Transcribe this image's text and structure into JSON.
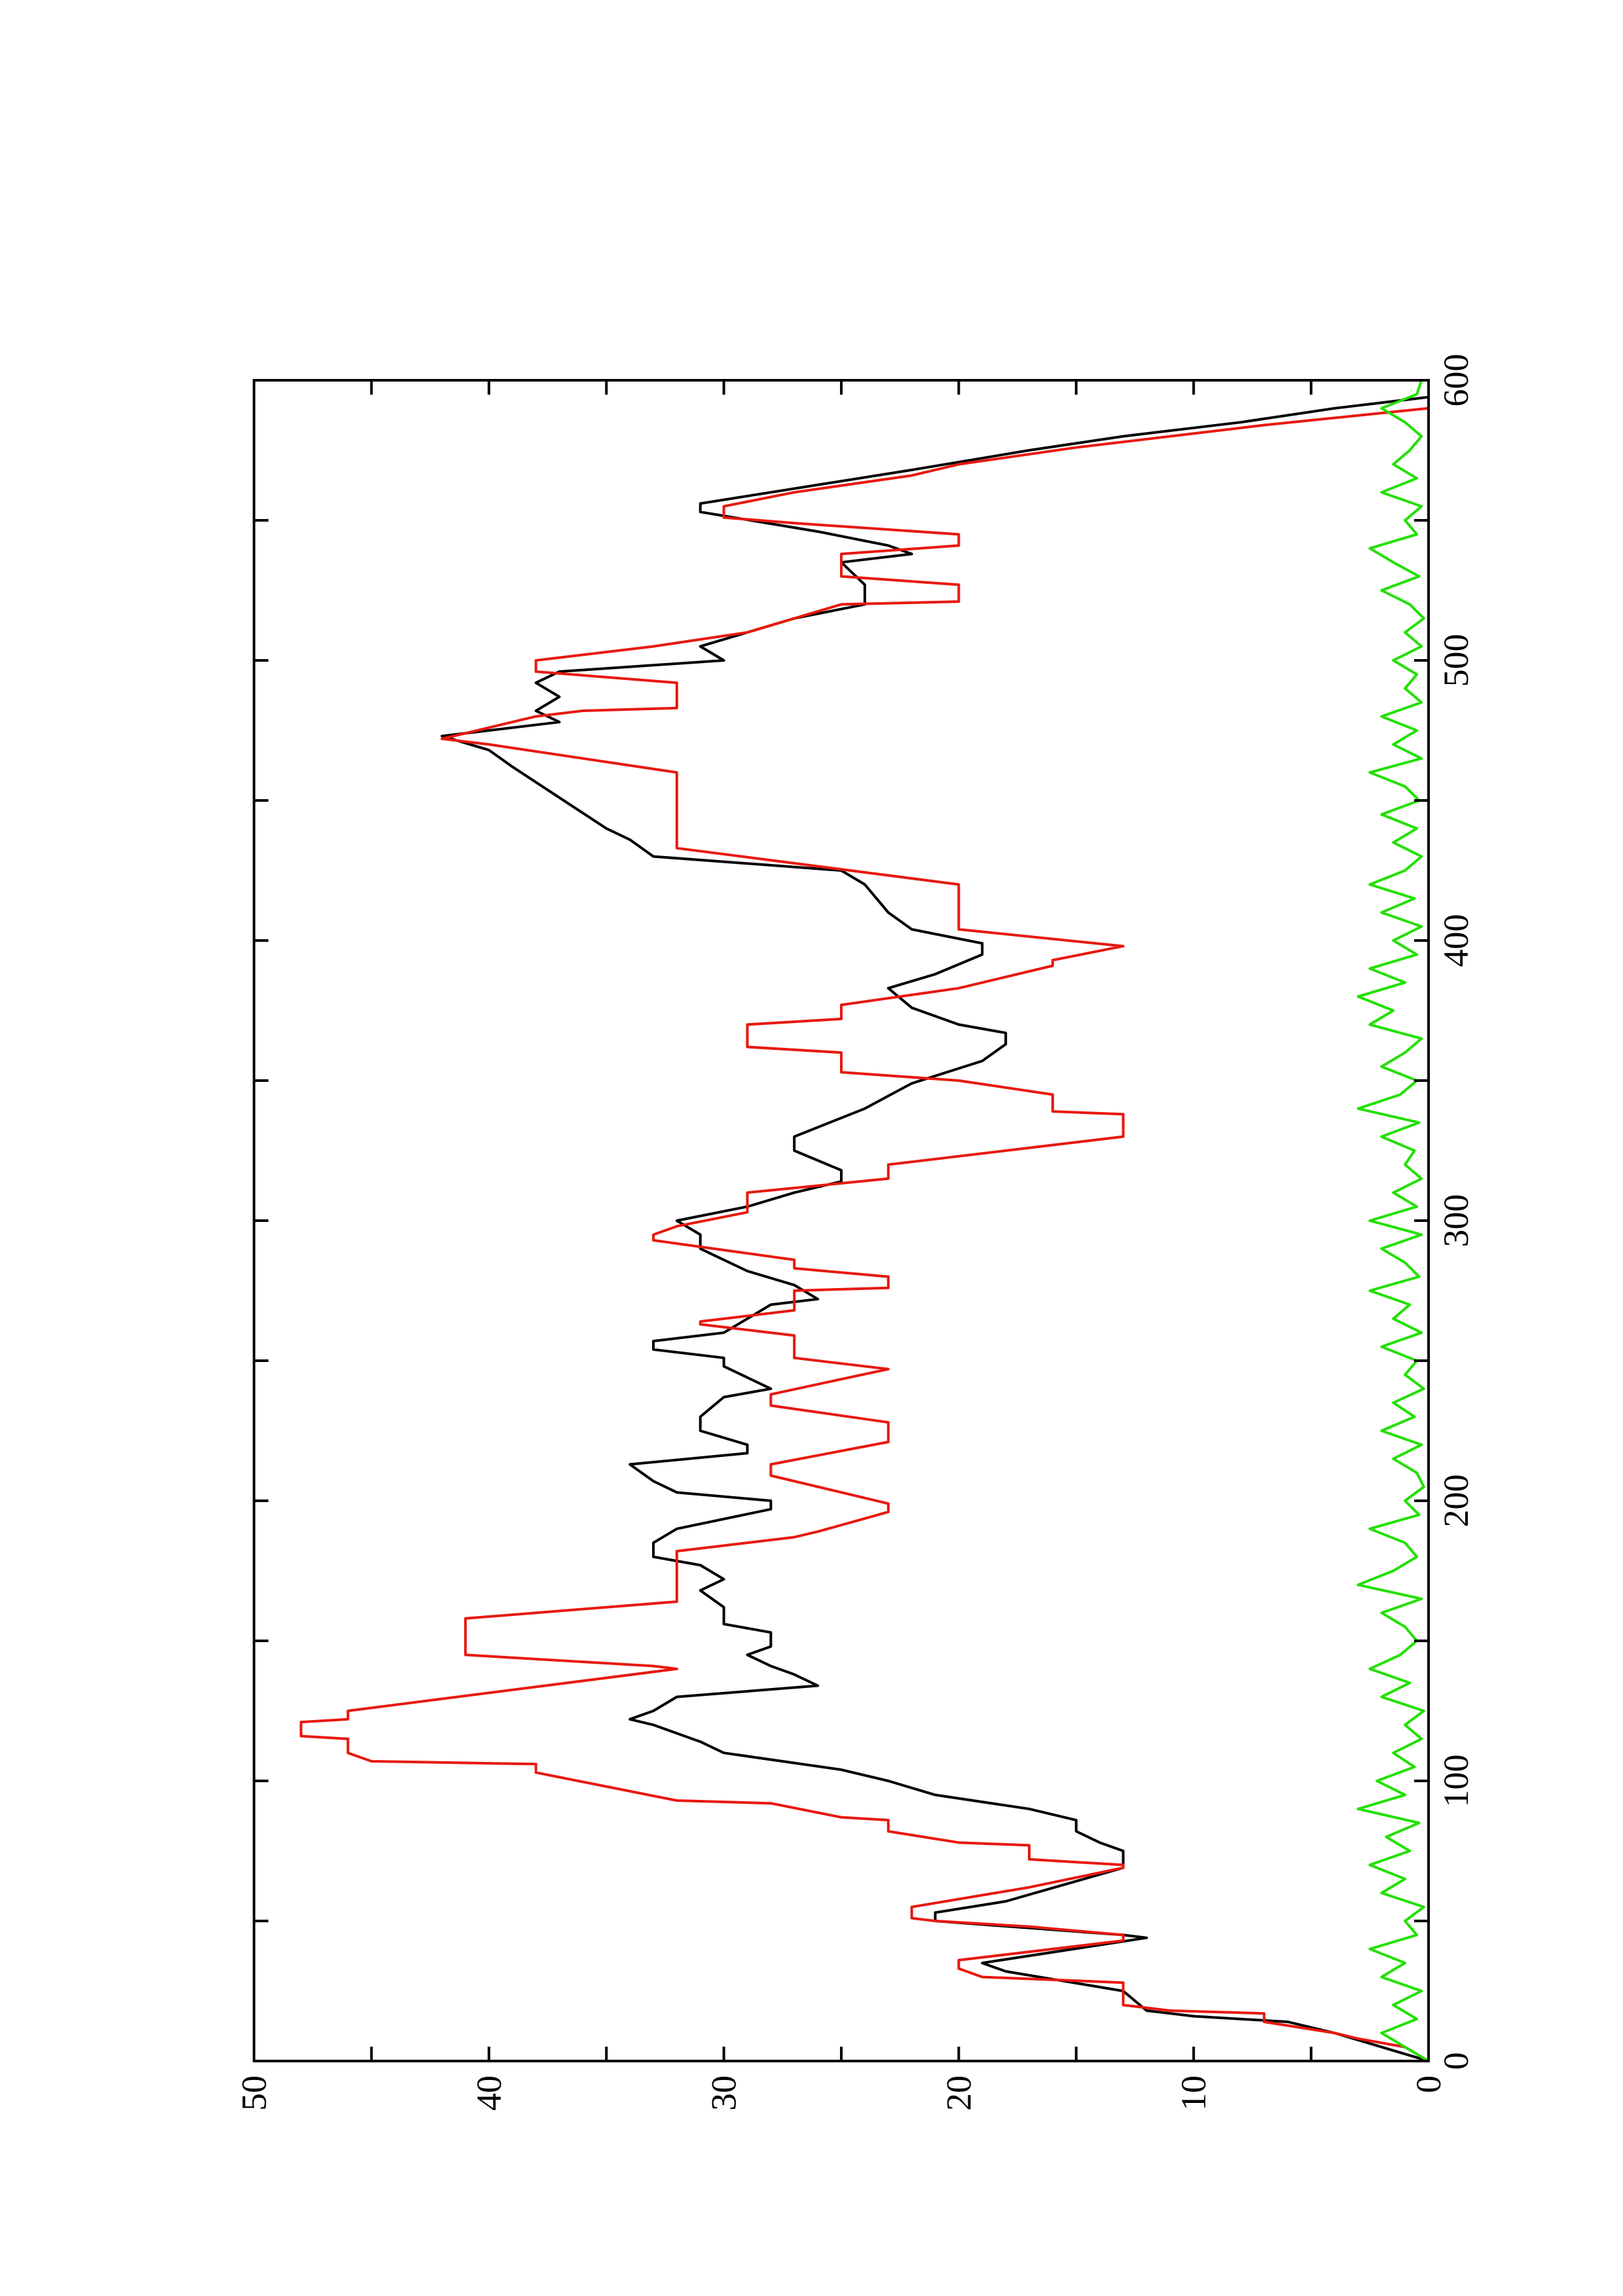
{
  "chart_data": {
    "type": "line",
    "xlim": [
      0,
      600
    ],
    "xticks": [
      0,
      100,
      200,
      300,
      400,
      500,
      600
    ],
    "xminorticks": [
      50,
      150,
      250,
      350,
      450,
      550
    ],
    "ylim": [
      0,
      50
    ],
    "yticks": [
      0,
      10,
      20,
      30,
      40,
      50
    ],
    "yminorticks": [
      5,
      15,
      25,
      35,
      45
    ],
    "rotated": true,
    "series": [
      {
        "color": "#000000",
        "x": [
          0,
          5,
          10,
          14,
          16,
          18,
          25,
          32,
          35,
          44,
          45,
          50,
          53,
          57,
          69,
          75,
          78,
          82,
          86,
          90,
          95,
          100,
          104,
          110,
          114,
          120,
          122,
          125,
          130,
          134,
          138,
          141,
          145,
          148,
          153,
          156,
          162,
          168,
          172,
          177,
          180,
          185,
          190,
          197,
          200,
          203,
          207,
          213,
          217,
          220,
          225,
          230,
          237,
          240,
          244,
          248,
          251,
          254,
          257,
          260,
          265,
          270,
          272,
          277,
          282,
          286,
          290,
          295,
          300,
          305,
          310,
          314,
          318,
          325,
          330,
          340,
          349,
          357,
          363,
          367,
          370,
          376,
          383,
          388,
          395,
          399,
          404,
          410,
          420,
          425,
          430,
          436,
          440,
          451,
          462,
          468,
          473,
          478,
          482,
          487,
          492,
          496,
          500,
          505,
          510,
          515,
          520,
          527,
          535,
          538,
          541,
          546,
          553,
          556,
          560,
          568,
          575,
          580,
          585,
          590,
          594
        ],
        "values": [
          0,
          2,
          4,
          6,
          10,
          12,
          13,
          18,
          19,
          12,
          13,
          21,
          21,
          18,
          13,
          13,
          14,
          15,
          15,
          17,
          21,
          23,
          25,
          30,
          31,
          33,
          34,
          33,
          32,
          26,
          27,
          28,
          29,
          28,
          28,
          30,
          30,
          31,
          30,
          31,
          33,
          33,
          32,
          28,
          28,
          32,
          33,
          34,
          29,
          29,
          31,
          31,
          30,
          28,
          29,
          30,
          30,
          33,
          33,
          30,
          29,
          28,
          26,
          27,
          29,
          30,
          31,
          31,
          32,
          29,
          27,
          25,
          25,
          27,
          27,
          24,
          22,
          19,
          18,
          18,
          20,
          22,
          23,
          21,
          19,
          19,
          22,
          23,
          24,
          25,
          33,
          34,
          35,
          37,
          39,
          40,
          42,
          37,
          38,
          37,
          38,
          37,
          30,
          31,
          29,
          27,
          24,
          24,
          25,
          22,
          23,
          26,
          31,
          31,
          28,
          22,
          17,
          13,
          8,
          4,
          0
        ]
      },
      {
        "color": "#e8180e",
        "x": [
          0,
          5,
          8,
          10,
          14,
          17,
          18,
          20,
          28,
          29,
          30,
          33,
          36,
          43,
          45,
          48,
          50,
          51,
          55,
          62,
          69,
          70,
          72,
          77,
          78,
          82,
          86,
          87,
          92,
          93,
          103,
          106,
          107,
          110,
          115,
          116,
          121,
          122,
          125,
          140,
          141,
          145,
          158,
          164,
          182,
          187,
          189,
          196,
          199,
          209,
          213,
          221,
          228,
          234,
          238,
          247,
          251,
          259,
          263,
          264,
          268,
          275,
          276,
          280,
          283,
          286,
          293,
          295,
          298,
          303,
          310,
          315,
          320,
          330,
          338,
          339,
          345,
          350,
          353,
          360,
          362,
          370,
          372,
          377,
          383,
          391,
          393,
          398,
          404,
          420,
          433,
          460,
          465,
          470,
          472,
          474,
          480,
          482,
          483,
          492,
          496,
          500,
          505,
          510,
          520,
          521,
          527,
          530,
          538,
          541,
          545,
          549,
          551,
          555,
          560,
          566,
          570,
          576,
          580,
          584,
          590
        ],
        "values": [
          0,
          1,
          3,
          4,
          7,
          7,
          11,
          13,
          13,
          16,
          19,
          20,
          20,
          13,
          13,
          17,
          21,
          22,
          22,
          17,
          13,
          13,
          17,
          17,
          20,
          23,
          23,
          25,
          28,
          32,
          38,
          38,
          45,
          46,
          46,
          48,
          48,
          46,
          46,
          32,
          33,
          41,
          41,
          32,
          32,
          27,
          26,
          23,
          23,
          28,
          28,
          23,
          23,
          28,
          28,
          23,
          27,
          27,
          31,
          31,
          27,
          27,
          23,
          23,
          27,
          27,
          33,
          33,
          32,
          29,
          29,
          23,
          23,
          13,
          13,
          16,
          16,
          20,
          25,
          25,
          29,
          29,
          25,
          25,
          20,
          16,
          16,
          13,
          20,
          20,
          32,
          32,
          36,
          40,
          42,
          41,
          38,
          36,
          32,
          32,
          38,
          38,
          33,
          29,
          25,
          20,
          20,
          25,
          25,
          20,
          20,
          27,
          30,
          30,
          27,
          22,
          20,
          15,
          11,
          7,
          0
        ]
      },
      {
        "color": "#22e000",
        "x": [
          0,
          5,
          10,
          15,
          20,
          25,
          30,
          35,
          40,
          45,
          50,
          55,
          60,
          65,
          70,
          75,
          80,
          85,
          90,
          95,
          100,
          105,
          110,
          115,
          120,
          125,
          130,
          135,
          140,
          145,
          150,
          155,
          160,
          165,
          170,
          175,
          180,
          185,
          190,
          195,
          200,
          205,
          210,
          215,
          220,
          225,
          230,
          235,
          240,
          245,
          250,
          255,
          260,
          265,
          270,
          275,
          280,
          285,
          290,
          295,
          300,
          305,
          310,
          315,
          320,
          325,
          330,
          335,
          340,
          345,
          350,
          355,
          360,
          365,
          370,
          375,
          380,
          385,
          390,
          395,
          400,
          405,
          410,
          415,
          420,
          425,
          430,
          435,
          440,
          445,
          450,
          455,
          460,
          465,
          470,
          475,
          480,
          485,
          490,
          495,
          500,
          505,
          510,
          515,
          520,
          525,
          530,
          535,
          540,
          545,
          550,
          555,
          560,
          565,
          570,
          575,
          580,
          585,
          590,
          595,
          600
        ],
        "values": [
          0,
          1,
          2,
          0.5,
          1.5,
          0.3,
          2,
          1,
          2.5,
          0.5,
          1,
          0.2,
          2,
          1,
          2.5,
          0.8,
          1.8,
          0.4,
          3,
          1,
          2.2,
          0.6,
          1.5,
          0.3,
          1,
          0.2,
          2,
          0.8,
          2.5,
          1.2,
          0.5,
          1,
          2,
          0.3,
          3,
          1.5,
          0.5,
          1,
          2.5,
          0.4,
          1,
          0.2,
          0.5,
          1.5,
          0.3,
          2,
          0.6,
          1.5,
          0.2,
          1,
          0.5,
          2,
          0.3,
          1.5,
          0.8,
          2.5,
          0.4,
          1,
          2,
          0.3,
          2.5,
          0.5,
          1.5,
          0.3,
          1,
          0.6,
          2,
          0.4,
          3,
          1.2,
          0.5,
          2,
          1,
          0.3,
          2.5,
          1.5,
          3,
          1,
          2.5,
          0.5,
          1.5,
          0.3,
          2,
          0.6,
          2.5,
          1,
          0.3,
          1.5,
          0.5,
          2,
          0.4,
          1,
          2.5,
          0.3,
          1.5,
          0.5,
          2,
          0.3,
          1,
          0.5,
          1.5,
          0.3,
          1,
          0.2,
          0.8,
          2,
          0.4,
          1.5,
          2.5,
          0.5,
          1,
          0.3,
          2,
          0.5,
          1.5,
          0.8,
          0.3,
          1,
          2,
          0.5,
          0.3
        ]
      }
    ]
  }
}
